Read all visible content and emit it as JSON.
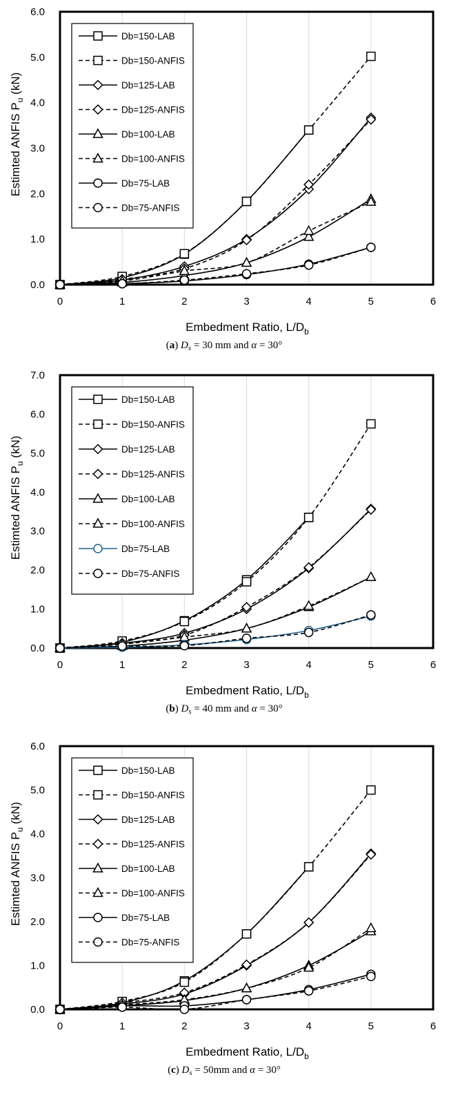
{
  "chart_data": [
    {
      "type": "line",
      "caption": {
        "letter": "a",
        "ds_value": "= 30 mm and",
        "alpha_value": "= 30°"
      },
      "xlabel": {
        "main": "Embedment Ratio, L/D",
        "sub": "b"
      },
      "ylabel": {
        "main": "Estimted ANFIS  P",
        "sub": "u",
        "tail": " (kN)"
      },
      "xlim": [
        0,
        6
      ],
      "ylim": [
        0,
        6
      ],
      "x_ticks": [
        "0",
        "1",
        "2",
        "3",
        "4",
        "5",
        "6"
      ],
      "y_ticks": [
        "0.0",
        "1.0",
        "2.0",
        "3.0",
        "4.0",
        "5.0",
        "6.0"
      ],
      "grid": "vertical",
      "legend_position": "top-left",
      "x": [
        0,
        1,
        2,
        3,
        4,
        5
      ],
      "series": [
        {
          "name": "Db=150-LAB",
          "marker": "square",
          "dash": "solid",
          "color": "#000000",
          "values": [
            0.0,
            0.15,
            0.67,
            1.83,
            3.4,
            null
          ]
        },
        {
          "name": "Db=150-ANFIS",
          "marker": "square",
          "dash": "dashed",
          "color": "#000000",
          "values": [
            0.0,
            0.18,
            0.68,
            1.83,
            3.4,
            5.02
          ]
        },
        {
          "name": "Db=125-LAB",
          "marker": "diamond",
          "dash": "solid",
          "color": "#000000",
          "values": [
            0.0,
            0.1,
            0.4,
            1.0,
            2.1,
            3.67
          ]
        },
        {
          "name": "Db=125-ANFIS",
          "marker": "diamond",
          "dash": "dashed",
          "color": "#000000",
          "values": [
            0.0,
            0.12,
            0.35,
            0.98,
            2.2,
            3.63
          ]
        },
        {
          "name": "Db=100-LAB",
          "marker": "triangle",
          "dash": "solid",
          "color": "#000000",
          "values": [
            0.0,
            0.05,
            0.2,
            0.48,
            1.05,
            1.88
          ]
        },
        {
          "name": "Db=100-ANFIS",
          "marker": "triangle",
          "dash": "dashed",
          "color": "#000000",
          "values": [
            0.0,
            0.08,
            0.3,
            0.48,
            1.18,
            1.82
          ]
        },
        {
          "name": "Db=75-LAB",
          "marker": "circle",
          "dash": "solid",
          "color": "#000000",
          "values": [
            0.0,
            0.02,
            0.08,
            0.22,
            0.45,
            0.82
          ]
        },
        {
          "name": "Db=75-ANFIS",
          "marker": "circle",
          "dash": "dashed",
          "color": "#000000",
          "values": [
            0.0,
            0.02,
            0.1,
            0.24,
            0.43,
            0.82
          ]
        }
      ]
    },
    {
      "type": "line",
      "caption": {
        "letter": "b",
        "ds_value": "= 40 mm and",
        "alpha_value": "= 30°"
      },
      "xlabel": {
        "main": "Embedment Ratio, L/D",
        "sub": "b"
      },
      "ylabel": {
        "main": "Estimted ANFIS P",
        "sub": "u",
        "tail": " (kN)"
      },
      "xlim": [
        0,
        6
      ],
      "ylim": [
        0,
        7
      ],
      "x_ticks": [
        "0",
        "1",
        "2",
        "3",
        "4",
        "5",
        "6"
      ],
      "y_ticks": [
        "0.0",
        "1.0",
        "2.0",
        "3.0",
        "4.0",
        "5.0",
        "6.0",
        "7.0"
      ],
      "grid": "vertical",
      "legend_position": "top-left",
      "x": [
        0,
        1,
        2,
        3,
        4,
        5
      ],
      "series": [
        {
          "name": "Db=150-LAB",
          "marker": "square",
          "dash": "solid",
          "color": "#000000",
          "values": [
            0.0,
            0.15,
            0.7,
            1.75,
            3.35,
            null
          ]
        },
        {
          "name": "Db=150-ANFIS",
          "marker": "square",
          "dash": "dashed",
          "color": "#000000",
          "values": [
            0.0,
            0.18,
            0.68,
            1.7,
            3.35,
            5.75
          ]
        },
        {
          "name": "Db=125-LAB",
          "marker": "diamond",
          "dash": "solid",
          "color": "#000000",
          "values": [
            0.0,
            0.12,
            0.38,
            1.0,
            2.05,
            3.57
          ]
        },
        {
          "name": "Db=125-ANFIS",
          "marker": "diamond",
          "dash": "dashed",
          "color": "#000000",
          "values": [
            0.0,
            0.13,
            0.33,
            1.05,
            2.07,
            3.55
          ]
        },
        {
          "name": "Db=100-LAB",
          "marker": "triangle",
          "dash": "solid",
          "color": "#000000",
          "values": [
            0.0,
            0.05,
            0.2,
            0.5,
            1.05,
            1.82
          ]
        },
        {
          "name": "Db=100-ANFIS",
          "marker": "triangle",
          "dash": "dashed",
          "color": "#000000",
          "values": [
            0.0,
            0.1,
            0.28,
            0.5,
            1.08,
            1.82
          ]
        },
        {
          "name": "Db=75-LAB",
          "marker": "circle",
          "dash": "solid",
          "color": "#1f5f8b",
          "values": [
            0.0,
            0.02,
            0.08,
            0.22,
            0.45,
            0.82
          ]
        },
        {
          "name": "Db=75-ANFIS",
          "marker": "circle",
          "dash": "dashed",
          "color": "#000000",
          "values": [
            0.0,
            0.05,
            0.06,
            0.25,
            0.4,
            0.85
          ]
        }
      ]
    },
    {
      "type": "line",
      "caption": {
        "letter": "c",
        "ds_value": "= 50mm and",
        "alpha_value": "= 30°"
      },
      "xlabel": {
        "main": "Embedment Ratio, L/D",
        "sub": "b"
      },
      "ylabel": {
        "main": "Estimted ANFIS  P",
        "sub": "u",
        "tail": " (kN)"
      },
      "xlim": [
        0,
        6
      ],
      "ylim": [
        0,
        6
      ],
      "x_ticks": [
        "0",
        "1",
        "2",
        "3",
        "4",
        "5",
        "6"
      ],
      "y_ticks": [
        "0.0",
        "1.0",
        "2.0",
        "3.0",
        "4.0",
        "5.0",
        "6.0"
      ],
      "grid": "vertical",
      "legend_position": "top-left",
      "x": [
        0,
        1,
        2,
        3,
        4,
        5
      ],
      "series": [
        {
          "name": "Db=150-LAB",
          "marker": "square",
          "dash": "solid",
          "color": "#000000",
          "values": [
            0.0,
            0.15,
            0.65,
            1.72,
            3.25,
            null
          ]
        },
        {
          "name": "Db=150-ANFIS",
          "marker": "square",
          "dash": "dashed",
          "color": "#000000",
          "values": [
            0.0,
            0.18,
            0.62,
            1.72,
            3.25,
            5.0
          ]
        },
        {
          "name": "Db=125-LAB",
          "marker": "diamond",
          "dash": "solid",
          "color": "#000000",
          "values": [
            0.0,
            0.12,
            0.35,
            1.0,
            1.98,
            3.55
          ]
        },
        {
          "name": "Db=125-ANFIS",
          "marker": "diamond",
          "dash": "dashed",
          "color": "#000000",
          "values": [
            0.0,
            0.15,
            0.38,
            1.02,
            1.98,
            3.53
          ]
        },
        {
          "name": "Db=100-LAB",
          "marker": "triangle",
          "dash": "solid",
          "color": "#000000",
          "values": [
            0.0,
            0.08,
            0.2,
            0.48,
            1.0,
            1.78
          ]
        },
        {
          "name": "Db=100-ANFIS",
          "marker": "triangle",
          "dash": "dashed",
          "color": "#000000",
          "values": [
            0.0,
            0.1,
            0.22,
            0.48,
            0.95,
            1.85
          ]
        },
        {
          "name": "Db=75-LAB",
          "marker": "circle",
          "dash": "solid",
          "color": "#000000",
          "values": [
            0.0,
            0.08,
            0.08,
            0.22,
            0.45,
            0.8
          ]
        },
        {
          "name": "Db=75-ANFIS",
          "marker": "circle",
          "dash": "dashed",
          "color": "#000000",
          "values": [
            0.0,
            0.05,
            0.0,
            0.22,
            0.42,
            0.75
          ]
        }
      ]
    }
  ]
}
